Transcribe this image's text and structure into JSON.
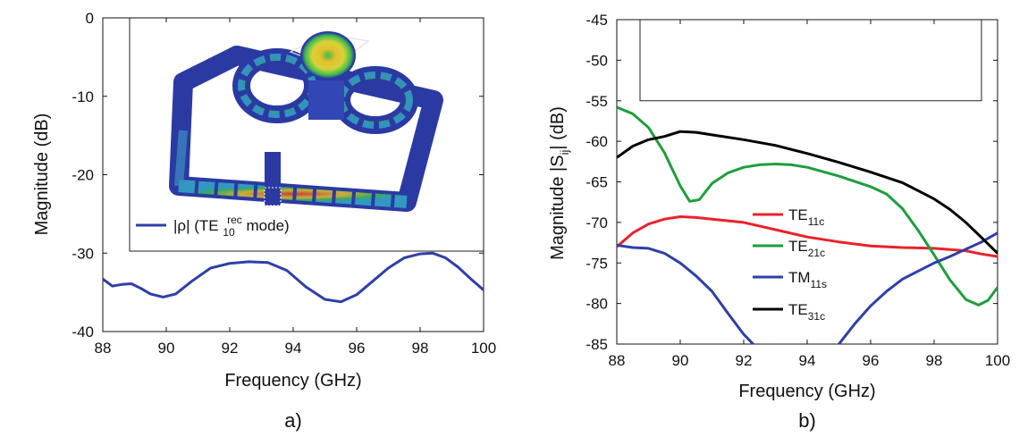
{
  "chart_data": [
    {
      "id": "a",
      "type": "line",
      "panel_label": "a)",
      "xlabel": "Frequency (GHz)",
      "ylabel": "Magnitude (dB)",
      "xlim": [
        88,
        100
      ],
      "ylim": [
        -40,
        0
      ],
      "xticks": [
        88,
        90,
        92,
        94,
        96,
        98,
        100
      ],
      "yticks": [
        0,
        -10,
        -20,
        -30,
        -40
      ],
      "grid": false,
      "legend_position": "inside-lower-left",
      "series": [
        {
          "name_parts": [
            "|ρ| (TE",
            "10",
            "rec",
            " mode)"
          ],
          "color": "#2f3fa8",
          "x": [
            88,
            88.3,
            88.6,
            88.9,
            89.2,
            89.5,
            89.9,
            90.3,
            90.8,
            91.4,
            92,
            92.6,
            93.2,
            93.8,
            94.4,
            95,
            95.5,
            96,
            96.5,
            97,
            97.5,
            98,
            98.4,
            98.8,
            99.2,
            99.6,
            100
          ],
          "y": [
            -33.3,
            -34.2,
            -34.0,
            -33.9,
            -34.5,
            -35.2,
            -35.6,
            -35.2,
            -33.6,
            -31.9,
            -31.3,
            -31.1,
            -31.2,
            -32.2,
            -34.3,
            -35.9,
            -36.2,
            -35.3,
            -33.6,
            -31.9,
            -30.6,
            -30.1,
            -30.0,
            -30.6,
            -31.8,
            -33.3,
            -34.7
          ]
        }
      ],
      "inset": {
        "description_icon": "waveguide-field-render-icon",
        "colors": {
          "frame": "#2b3aa3",
          "field_hot": "#d94423",
          "field_warm": "#e6c12b",
          "field_mid": "#3dbd4d",
          "field_cool": "#33a9c9"
        }
      }
    },
    {
      "id": "b",
      "type": "line",
      "panel_label": "b)",
      "xlabel": "Frequency (GHz)",
      "ylabel_parts": [
        "Magnitude |S",
        "ij",
        "| (dB)"
      ],
      "xlim": [
        88,
        100
      ],
      "ylim": [
        -85,
        -45
      ],
      "xticks": [
        88,
        90,
        92,
        94,
        96,
        98,
        100
      ],
      "yticks": [
        -45,
        -50,
        -55,
        -60,
        -65,
        -70,
        -75,
        -80,
        -85
      ],
      "grid": false,
      "legend_position": "inside-center",
      "series": [
        {
          "name_parts": [
            "TE",
            "11c"
          ],
          "color": "#e8232b",
          "x": [
            88,
            88.5,
            89,
            89.5,
            90,
            90.5,
            91,
            92,
            93,
            94,
            95,
            96,
            97,
            98,
            99,
            99.5,
            100
          ],
          "y": [
            -73.0,
            -71.3,
            -70.2,
            -69.6,
            -69.3,
            -69.4,
            -69.6,
            -70.0,
            -70.9,
            -71.8,
            -72.4,
            -72.9,
            -73.1,
            -73.2,
            -73.5,
            -73.9,
            -74.2
          ]
        },
        {
          "name_parts": [
            "TE",
            "21c"
          ],
          "color": "#1e9e3c",
          "x": [
            88,
            88.5,
            89,
            89.5,
            90,
            90.3,
            90.6,
            91,
            91.5,
            92,
            92.5,
            93,
            93.5,
            94,
            95,
            96,
            96.5,
            97,
            97.5,
            98,
            98.5,
            99,
            99.4,
            99.7,
            100
          ],
          "y": [
            -55.8,
            -56.6,
            -58.3,
            -61.4,
            -65.5,
            -67.4,
            -67.2,
            -65.2,
            -63.9,
            -63.2,
            -62.9,
            -62.8,
            -62.9,
            -63.2,
            -64.3,
            -65.6,
            -66.5,
            -68.3,
            -71.0,
            -74.0,
            -77.1,
            -79.5,
            -80.2,
            -79.6,
            -78.0
          ]
        },
        {
          "name_parts": [
            "TM",
            "11s"
          ],
          "color": "#2f3fa8",
          "x": [
            88,
            88.5,
            89,
            89.5,
            90,
            90.5,
            91,
            91.5,
            92,
            92.3,
            92.6,
            94.6,
            95,
            95.5,
            96,
            96.5,
            97,
            97.5,
            98,
            98.5,
            99,
            99.5,
            100
          ],
          "y": [
            -72.8,
            -73.1,
            -73.2,
            -73.8,
            -75.0,
            -76.6,
            -78.5,
            -81.2,
            -83.8,
            -85.0,
            -86.5,
            -86.5,
            -85.0,
            -82.5,
            -80.3,
            -78.5,
            -77.0,
            -76.0,
            -75.0,
            -74.2,
            -73.3,
            -72.4,
            -71.3
          ]
        },
        {
          "name_parts": [
            "TE",
            "31c"
          ],
          "color": "#000000",
          "x": [
            88,
            88.5,
            89,
            89.5,
            90,
            90.5,
            91,
            92,
            93,
            94,
            95,
            96,
            97,
            98,
            98.5,
            99,
            99.5,
            100
          ],
          "y": [
            -62.0,
            -60.6,
            -59.8,
            -59.4,
            -58.8,
            -58.9,
            -59.2,
            -59.8,
            -60.5,
            -61.5,
            -62.6,
            -63.8,
            -65.1,
            -67.1,
            -68.4,
            -70.0,
            -71.9,
            -73.8
          ]
        }
      ],
      "inset": {
        "range_y": [
          -55,
          -45
        ]
      }
    }
  ]
}
